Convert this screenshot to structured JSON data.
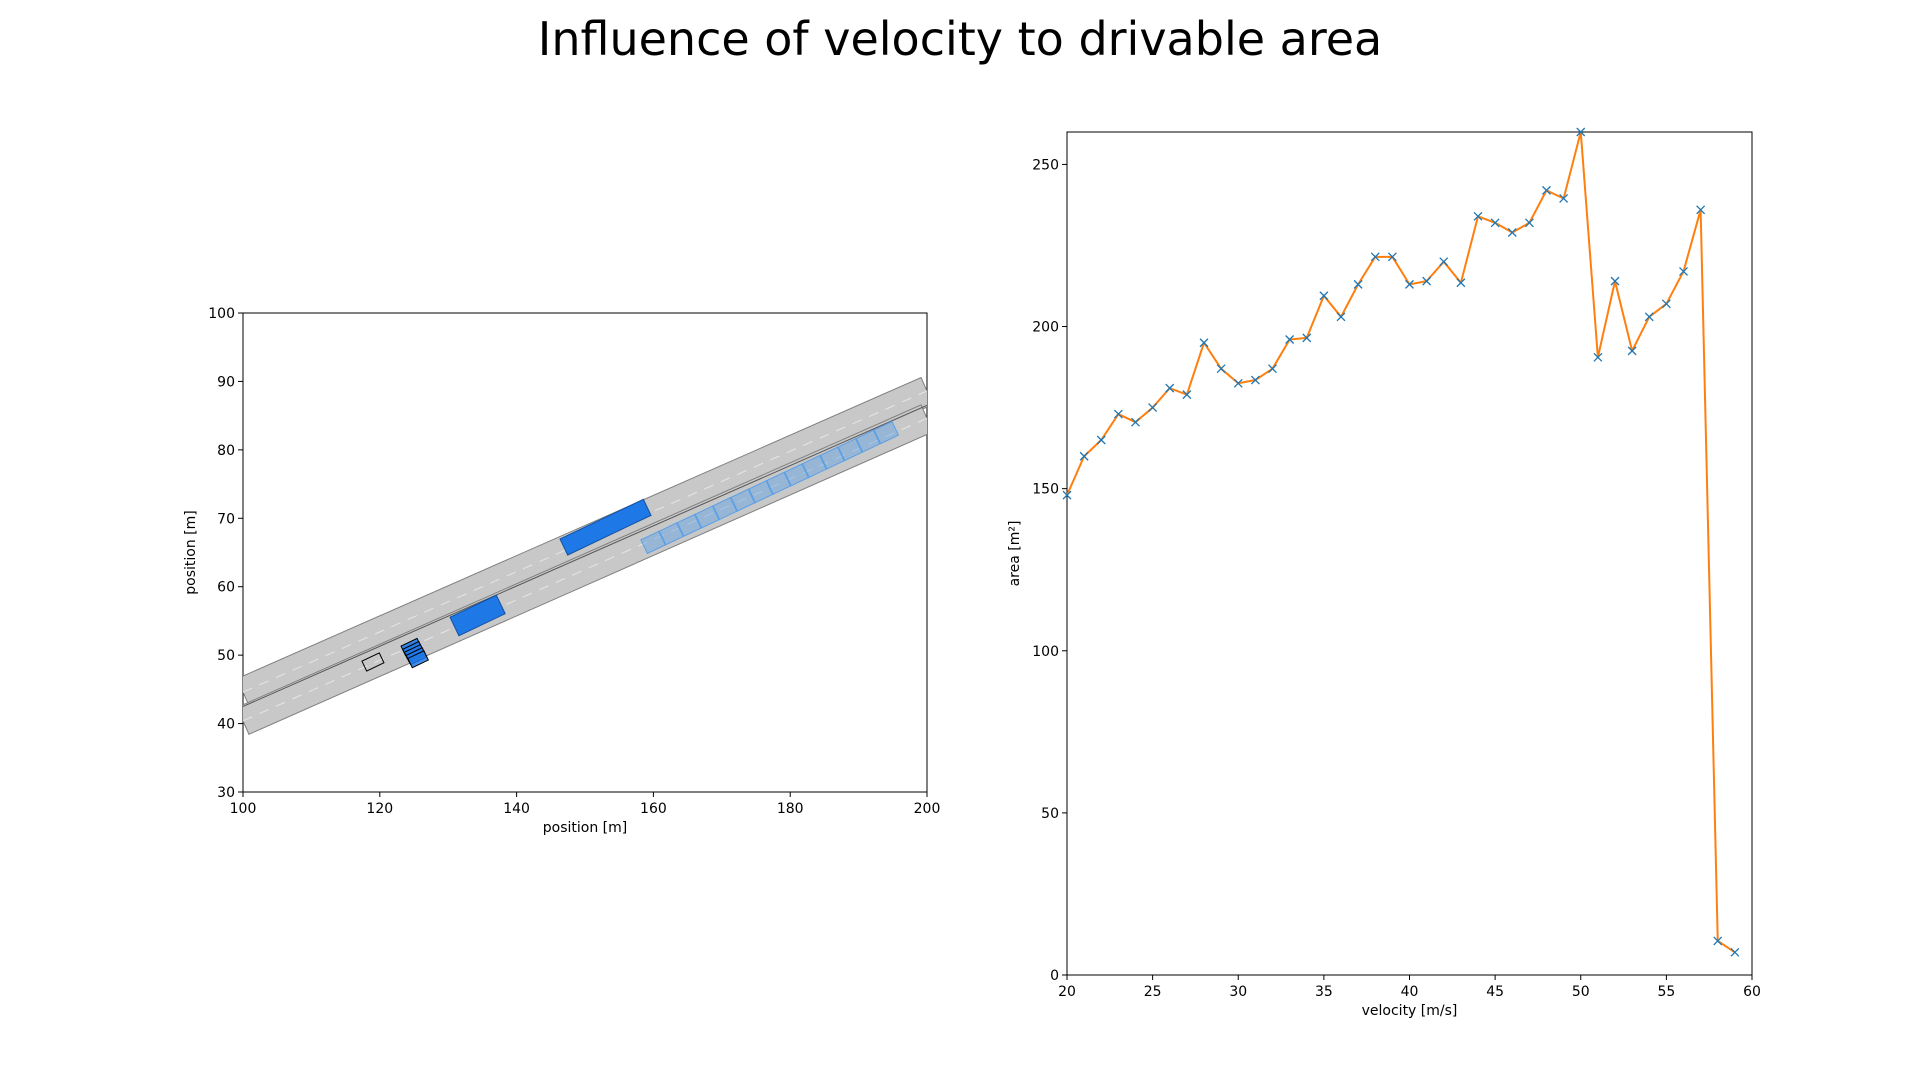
{
  "figure_title": "Influence of velocity to drivable area",
  "chart_data": [
    {
      "type": "scenario-plot",
      "xlabel": "position [m]",
      "ylabel": "position [m]",
      "xlim": [
        100,
        200
      ],
      "ylim": [
        30,
        100
      ],
      "xticks": [
        100,
        120,
        140,
        160,
        180,
        200
      ],
      "yticks": [
        30,
        40,
        50,
        60,
        70,
        80,
        90,
        100
      ],
      "grid": false,
      "road": {
        "color": "#c8c8c8",
        "edge_color": "#808080",
        "heading_deg": 25.5,
        "lanes": [
          {
            "name": "lane-upper",
            "center_left": [
              100,
              44.6
            ],
            "center_right": [
              200,
              88.6
            ],
            "width": 4.3
          },
          {
            "name": "lane-lower",
            "center_left": [
              100,
              40.4
            ],
            "center_right": [
              200,
              84.6
            ],
            "width": 4.3
          }
        ],
        "centerline_left": [
          100,
          42.5
        ],
        "centerline_right": [
          200,
          86.5
        ]
      },
      "obstacles": [
        {
          "name": "obstacle-far",
          "center": [
            153,
            68.7
          ],
          "length": 13.5,
          "width": 2.6,
          "color": "#1e78e6"
        },
        {
          "name": "obstacle-near",
          "center": [
            134.3,
            55.8
          ],
          "length": 7.5,
          "width": 3.0,
          "color": "#1e78e6"
        }
      ],
      "obstacle_prediction": {
        "color": "#5aa0e6",
        "start": [
          160,
          66.5
        ],
        "end": [
          194,
          82.5
        ],
        "count": 14,
        "length": 3.0,
        "width": 2.2
      },
      "ego_initial": {
        "center": [
          119,
          49
        ],
        "length": 2.8,
        "width": 1.6,
        "color": "#000000"
      },
      "ego_reachable_set": {
        "center": [
          124.6,
          51.2
        ],
        "count": 5,
        "color": "#1e78e6"
      }
    },
    {
      "type": "line",
      "xlabel": "velocity [m/s]",
      "ylabel": "area [m²]",
      "xlim": [
        20,
        60
      ],
      "ylim": [
        0,
        260
      ],
      "xticks": [
        20,
        25,
        30,
        35,
        40,
        45,
        50,
        55,
        60
      ],
      "yticks": [
        0,
        50,
        100,
        150,
        200,
        250
      ],
      "grid": false,
      "line_color": "#ff7f0e",
      "marker_color": "#1f77b4",
      "marker": "x",
      "x": [
        20,
        21,
        22,
        23,
        24,
        25,
        26,
        27,
        28,
        29,
        30,
        31,
        32,
        33,
        34,
        35,
        36,
        37,
        38,
        39,
        40,
        41,
        42,
        43,
        44,
        45,
        46,
        47,
        48,
        49,
        50,
        51,
        52,
        53,
        54,
        55,
        56,
        57,
        58,
        59
      ],
      "y": [
        148,
        160,
        165,
        173,
        170.5,
        175,
        181,
        179,
        195,
        187,
        182.5,
        183.5,
        187,
        196,
        196.5,
        209.5,
        203,
        213,
        221.5,
        221.5,
        213,
        214,
        220,
        213.5,
        234,
        232,
        229,
        232,
        242,
        239.5,
        260,
        190.5,
        214,
        192.5,
        203,
        207,
        217,
        236,
        10.5,
        7
      ]
    }
  ]
}
